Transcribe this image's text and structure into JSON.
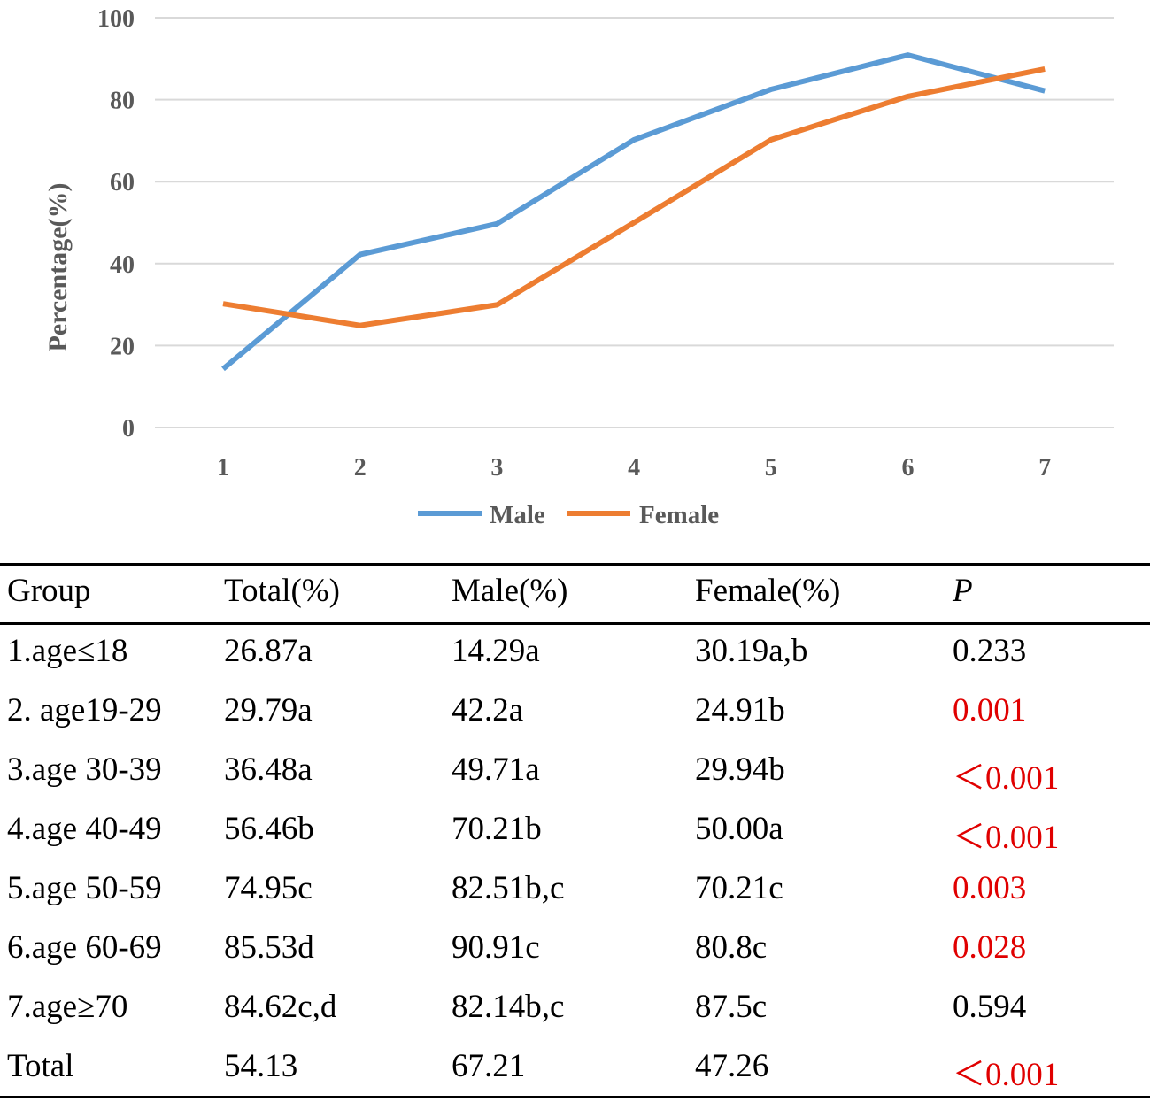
{
  "chart_data": {
    "type": "line",
    "x": [
      1,
      2,
      3,
      4,
      5,
      6,
      7
    ],
    "ylabel": "Percentage(%)",
    "xlabel": "",
    "ylim": [
      0,
      100
    ],
    "yticks": [
      0,
      20,
      40,
      60,
      80,
      100
    ],
    "grid": true,
    "legend_position": "bottom",
    "series": [
      {
        "name": "Male",
        "color": "#5B9BD5",
        "values": [
          14.29,
          42.2,
          49.71,
          70.21,
          82.51,
          90.91,
          82.14
        ]
      },
      {
        "name": "Female",
        "color": "#ED7D31",
        "values": [
          30.19,
          24.91,
          29.94,
          50.0,
          70.21,
          80.8,
          87.5
        ]
      }
    ]
  },
  "table": {
    "headers": [
      "Group",
      "Total(%)",
      "Male(%)",
      "Female(%)",
      "P"
    ],
    "rows": [
      {
        "group": "1.age≤18",
        "total": "26.87a",
        "male": "14.29a",
        "female": "30.19a,b",
        "p": "0.233",
        "significant": false
      },
      {
        "group": "2. age19-29",
        "total": "29.79a",
        "male": "42.2a",
        "female": "24.91b",
        "p": "0.001",
        "significant": true
      },
      {
        "group": "3.age 30-39",
        "total": "36.48a",
        "male": "49.71a",
        "female": "29.94b",
        "p": "＜0.001",
        "significant": true
      },
      {
        "group": "4.age 40-49",
        "total": "56.46b",
        "male": "70.21b",
        "female": "50.00a",
        "p": "＜0.001",
        "significant": true
      },
      {
        "group": "5.age 50-59",
        "total": "74.95c",
        "male": "82.51b,c",
        "female": "70.21c",
        "p": "0.003",
        "significant": true
      },
      {
        "group": "6.age 60-69",
        "total": "85.53d",
        "male": "90.91c",
        "female": "80.8c",
        "p": "0.028",
        "significant": true
      },
      {
        "group": "7.age≥70",
        "total": "84.62c,d",
        "male": "82.14b,c",
        "female": "87.5c",
        "p": "0.594",
        "significant": false
      },
      {
        "group": "Total",
        "total": "54.13",
        "male": "67.21",
        "female": "47.26",
        "p": "＜0.001",
        "significant": true
      }
    ],
    "significant_color": "#E00000"
  }
}
